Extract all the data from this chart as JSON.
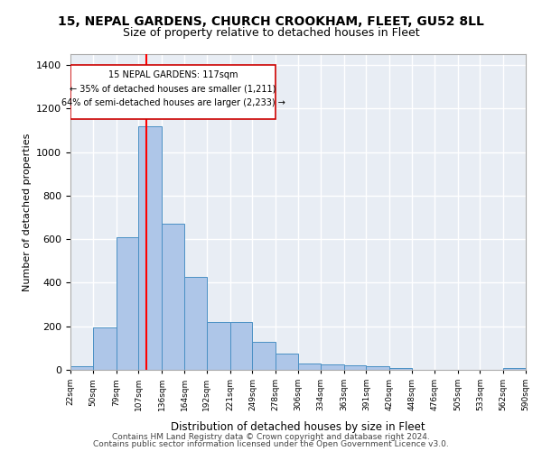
{
  "title1": "15, NEPAL GARDENS, CHURCH CROOKHAM, FLEET, GU52 8LL",
  "title2": "Size of property relative to detached houses in Fleet",
  "xlabel": "Distribution of detached houses by size in Fleet",
  "ylabel": "Number of detached properties",
  "bar_color": "#aec6e8",
  "bar_edge_color": "#4a90c4",
  "background_color": "#e8edf4",
  "grid_color": "#ffffff",
  "annotation_line_color": "#ff0000",
  "annotation_property_sqm": 117,
  "annotation_text_line1": "15 NEPAL GARDENS: 117sqm",
  "annotation_text_line2": "← 35% of detached houses are smaller (1,211)",
  "annotation_text_line3": "64% of semi-detached houses are larger (2,233) →",
  "footer_line1": "Contains HM Land Registry data © Crown copyright and database right 2024.",
  "footer_line2": "Contains public sector information licensed under the Open Government Licence v3.0.",
  "bin_edges": [
    22,
    50,
    79,
    107,
    136,
    164,
    192,
    221,
    249,
    278,
    306,
    334,
    363,
    391,
    420,
    448,
    476,
    505,
    533,
    562,
    590
  ],
  "bar_heights": [
    15,
    195,
    610,
    1120,
    670,
    425,
    220,
    220,
    130,
    75,
    30,
    25,
    20,
    15,
    10,
    0,
    0,
    0,
    0,
    10
  ],
  "ylim": [
    0,
    1450
  ],
  "yticks": [
    0,
    200,
    400,
    600,
    800,
    1000,
    1200,
    1400
  ]
}
